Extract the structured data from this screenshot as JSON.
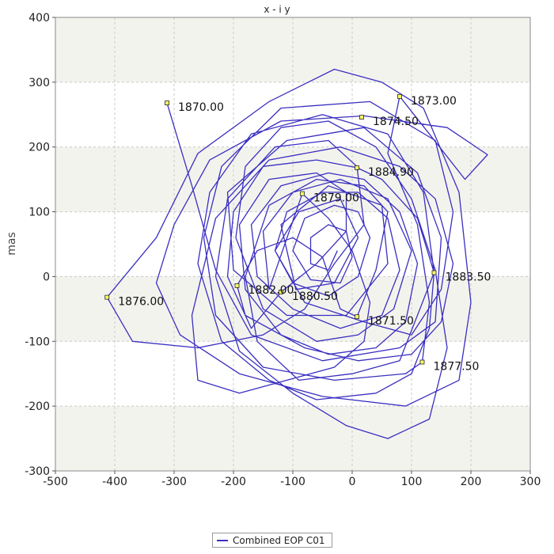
{
  "chart_data": {
    "type": "line",
    "title": "x - i y",
    "xlabel": "",
    "ylabel": "mas",
    "xlim": [
      -500,
      300
    ],
    "ylim": [
      -300,
      400
    ],
    "x_ticks": [
      -500,
      -400,
      -300,
      -200,
      -100,
      0,
      100,
      200,
      300
    ],
    "y_ticks": [
      -300,
      -200,
      -100,
      0,
      100,
      200,
      300,
      400
    ],
    "grid": true,
    "legend_position": "bottom-center",
    "line_color": "#3a2fc0",
    "band_color": "#f3f3ee",
    "series": [
      {
        "name": "Combined EOP C01",
        "points": [
          [
            -312,
            268
          ],
          [
            -270,
            140
          ],
          [
            -230,
            10
          ],
          [
            -170,
            -90
          ],
          [
            -50,
            -130
          ],
          [
            80,
            -110
          ],
          [
            140,
            -70
          ],
          [
            150,
            60
          ],
          [
            110,
            160
          ],
          [
            20,
            230
          ],
          [
            -110,
            210
          ],
          [
            -210,
            130
          ],
          [
            -200,
            10
          ],
          [
            -110,
            -60
          ],
          [
            -10,
            -60
          ],
          [
            60,
            20
          ],
          [
            50,
            110
          ],
          [
            -40,
            140
          ],
          [
            -120,
            80
          ],
          [
            -95,
            -20
          ],
          [
            -30,
            -10
          ],
          [
            10,
            60
          ],
          [
            -20,
            120
          ],
          [
            -90,
            100
          ],
          [
            -130,
            40
          ],
          [
            -80,
            -40
          ],
          [
            20,
            -70
          ],
          [
            100,
            -90
          ],
          [
            150,
            -20
          ],
          [
            170,
            100
          ],
          [
            140,
            210
          ],
          [
            30,
            270
          ],
          [
            -120,
            260
          ],
          [
            -220,
            170
          ],
          [
            -250,
            60
          ],
          [
            -230,
            -60
          ],
          [
            -150,
            -140
          ],
          [
            -30,
            -160
          ],
          [
            90,
            -150
          ],
          [
            118,
            -132
          ],
          [
            130,
            -40
          ],
          [
            110,
            80
          ],
          [
            60,
            190
          ],
          [
            80,
            278
          ],
          [
            130,
            220
          ],
          [
            190,
            150
          ],
          [
            228,
            188
          ],
          [
            160,
            230
          ],
          [
            20,
            248
          ],
          [
            -120,
            240
          ],
          [
            -240,
            180
          ],
          [
            -300,
            80
          ],
          [
            -330,
            -10
          ],
          [
            -290,
            -90
          ],
          [
            -190,
            -150
          ],
          [
            -50,
            -185
          ],
          [
            90,
            -200
          ],
          [
            180,
            -160
          ],
          [
            200,
            -40
          ],
          [
            180,
            130
          ],
          [
            120,
            260
          ],
          [
            50,
            300
          ],
          [
            -30,
            320
          ],
          [
            -140,
            270
          ],
          [
            -260,
            190
          ],
          [
            -330,
            60
          ],
          [
            -413,
            -32
          ],
          [
            -370,
            -100
          ],
          [
            -260,
            -110
          ],
          [
            -150,
            -90
          ],
          [
            -80,
            -50
          ],
          [
            -30,
            20
          ],
          [
            20,
            80
          ],
          [
            8,
            170
          ],
          [
            -40,
            210
          ],
          [
            -130,
            200
          ],
          [
            -210,
            120
          ],
          [
            -230,
            0
          ],
          [
            -190,
            -115
          ],
          [
            -100,
            -180
          ],
          [
            -10,
            -230
          ],
          [
            60,
            -250
          ],
          [
            130,
            -220
          ],
          [
            160,
            -110
          ],
          [
            140,
            10
          ],
          [
            100,
            120
          ],
          [
            40,
            200
          ],
          [
            -40,
            240
          ],
          [
            -120,
            230
          ],
          [
            -180,
            170
          ],
          [
            -196,
            60
          ],
          [
            -150,
            -50
          ],
          [
            -60,
            -100
          ],
          [
            10,
            -90
          ],
          [
            70,
            -50
          ],
          [
            100,
            40
          ],
          [
            60,
            120
          ],
          [
            -20,
            150
          ],
          [
            -100,
            130
          ],
          [
            -150,
            70
          ],
          [
            -140,
            -20
          ],
          [
            -84,
            128
          ],
          [
            -40,
            90
          ],
          [
            0,
            40
          ],
          [
            30,
            -40
          ],
          [
            20,
            -100
          ],
          [
            -30,
            -140
          ],
          [
            -110,
            -160
          ],
          [
            -190,
            -180
          ],
          [
            -260,
            -160
          ],
          [
            -270,
            -60
          ],
          [
            -230,
            90
          ],
          [
            -140,
            180
          ],
          [
            -20,
            200
          ],
          [
            80,
            170
          ],
          [
            140,
            120
          ],
          [
            170,
            20
          ],
          [
            150,
            -70
          ],
          [
            100,
            -120
          ],
          [
            10,
            -130
          ],
          [
            -80,
            -110
          ],
          [
            -180,
            -60
          ],
          [
            -194,
            -14
          ],
          [
            -160,
            40
          ],
          [
            -100,
            60
          ],
          [
            -50,
            30
          ],
          [
            -20,
            -50
          ],
          [
            8,
            -62
          ],
          [
            40,
            10
          ],
          [
            60,
            100
          ],
          [
            20,
            140
          ],
          [
            -60,
            150
          ],
          [
            -140,
            110
          ],
          [
            -180,
            0
          ],
          [
            -160,
            -100
          ],
          [
            -90,
            -160
          ],
          [
            0,
            -150
          ],
          [
            80,
            -130
          ],
          [
            138,
            6
          ],
          [
            120,
            130
          ],
          [
            60,
            220
          ],
          [
            -50,
            250
          ],
          [
            -170,
            220
          ],
          [
            -240,
            130
          ],
          [
            -260,
            20
          ],
          [
            -220,
            -100
          ],
          [
            -140,
            -160
          ],
          [
            -60,
            -190
          ],
          [
            40,
            -180
          ],
          [
            100,
            -150
          ],
          [
            130,
            -80
          ],
          [
            138,
            6
          ],
          [
            110,
            90
          ],
          [
            50,
            150
          ],
          [
            8,
            168
          ],
          [
            -60,
            180
          ],
          [
            -150,
            170
          ],
          [
            -200,
            100
          ],
          [
            -210,
            0
          ],
          [
            -170,
            -80
          ],
          [
            -120,
            -24
          ],
          [
            -60,
            20
          ],
          [
            -10,
            70
          ],
          [
            -10,
            130
          ],
          [
            -60,
            160
          ],
          [
            -140,
            150
          ],
          [
            -190,
            80
          ],
          [
            -180,
            -20
          ],
          [
            -120,
            -90
          ],
          [
            -40,
            -120
          ],
          [
            40,
            -110
          ],
          [
            90,
            -70
          ],
          [
            110,
            20
          ],
          [
            80,
            100
          ],
          [
            20,
            150
          ],
          [
            -40,
            160
          ],
          [
            -120,
            140
          ],
          [
            -170,
            80
          ],
          [
            -160,
            0
          ],
          [
            -100,
            -50
          ],
          [
            -20,
            -80
          ],
          [
            50,
            -60
          ],
          [
            80,
            10
          ],
          [
            60,
            90
          ],
          [
            10,
            130
          ],
          [
            -50,
            130
          ],
          [
            -110,
            100
          ],
          [
            -130,
            40
          ],
          [
            -100,
            -10
          ],
          [
            -40,
            -30
          ],
          [
            10,
            0
          ],
          [
            30,
            60
          ],
          [
            10,
            100
          ],
          [
            -30,
            110
          ],
          [
            -80,
            90
          ],
          [
            -100,
            40
          ],
          [
            -70,
            -5
          ],
          [
            -20,
            -10
          ],
          [
            0,
            30
          ],
          [
            -10,
            70
          ],
          [
            -40,
            80
          ],
          [
            -70,
            60
          ],
          [
            -70,
            20
          ],
          [
            -40,
            10
          ],
          [
            -25,
            40
          ]
        ]
      }
    ],
    "annotations": [
      {
        "x": -312,
        "y": 268,
        "label": "1870.00"
      },
      {
        "x": 8,
        "y": -62,
        "label": "1871.50"
      },
      {
        "x": 80,
        "y": 278,
        "label": "1873.00"
      },
      {
        "x": 16,
        "y": 246,
        "label": "1874.50"
      },
      {
        "x": -413,
        "y": -32,
        "label": "1876.00"
      },
      {
        "x": 118,
        "y": -132,
        "label": "1877.50"
      },
      {
        "x": -84,
        "y": 128,
        "label": "1879.00"
      },
      {
        "x": -120,
        "y": -24,
        "label": "1880.50"
      },
      {
        "x": -194,
        "y": -14,
        "label": "1882.00"
      },
      {
        "x": 138,
        "y": 6,
        "label": "1883.50"
      },
      {
        "x": 8,
        "y": 168,
        "label": "1884.90"
      }
    ]
  }
}
